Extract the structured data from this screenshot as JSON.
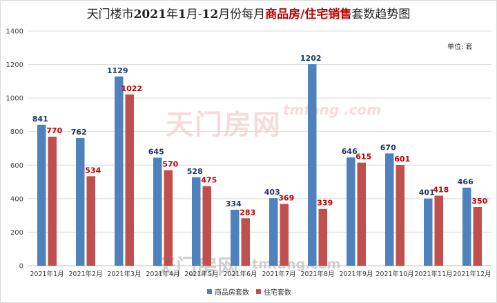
{
  "title": {
    "part1": "天门楼市",
    "part2": "2021",
    "part3": "年",
    "part4": "1",
    "part5": "月-",
    "part6": "12",
    "part7": "月份每月",
    "part8": "商品房/住宅销售",
    "part9": "套数趋势图"
  },
  "unit_label": "单位:  套",
  "watermark": {
    "main": "天门房网",
    "side": "tmfang .com",
    "bottom": "天门房网",
    "bottom_side": "tmfang.com"
  },
  "colors": {
    "series1": "#4f81bd",
    "series2": "#c0504d",
    "label1": "#1f3864",
    "label2": "#c00000"
  },
  "chart_data": {
    "type": "bar",
    "categories": [
      "2021年1月",
      "2021年2月",
      "2021年3月",
      "2021年4月",
      "2021年5月",
      "2021年6月",
      "2021年7月",
      "2021年8月",
      "2021年9月",
      "2021年10月",
      "2021年11月",
      "2021年12月"
    ],
    "series": [
      {
        "name": "商品房套数",
        "values": [
          841,
          762,
          1129,
          645,
          528,
          334,
          403,
          1202,
          646,
          670,
          401,
          466
        ]
      },
      {
        "name": "住宅套数",
        "values": [
          770,
          534,
          1022,
          570,
          475,
          283,
          369,
          339,
          615,
          601,
          418,
          350
        ]
      }
    ],
    "ylim": [
      0,
      1400
    ],
    "yticks": [
      0,
      200,
      400,
      600,
      800,
      1000,
      1200,
      1400
    ],
    "grid": true,
    "legend": "bottom"
  }
}
